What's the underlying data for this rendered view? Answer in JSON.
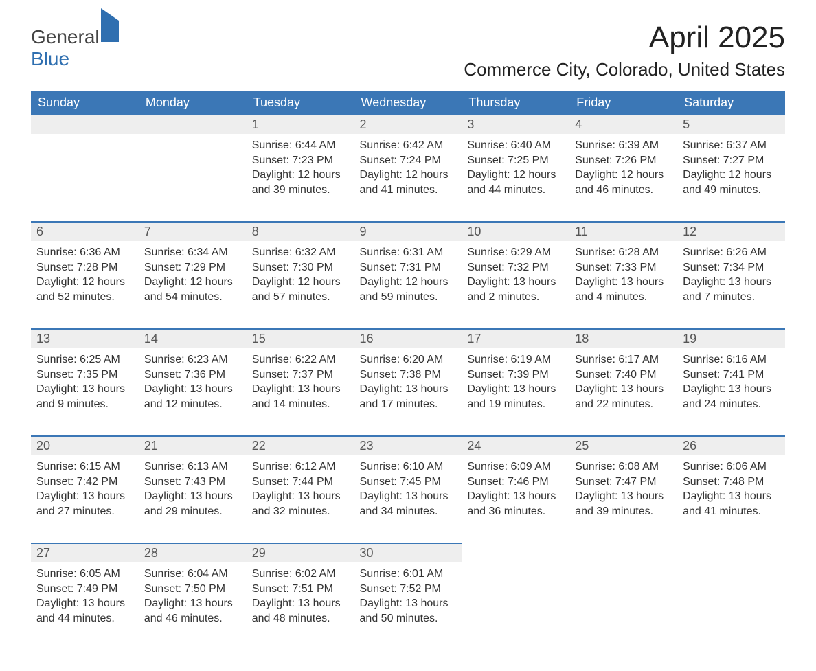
{
  "logo": {
    "word1": "General",
    "word2": "Blue"
  },
  "title": "April 2025",
  "location": "Commerce City, Colorado, United States",
  "colors": {
    "header_bg": "#3b77b6",
    "header_text": "#ffffff",
    "daynum_bg": "#eeeeee",
    "rule": "#3b77b6",
    "body_text": "#333333",
    "accent": "#2f6fb0"
  },
  "day_headers": [
    "Sunday",
    "Monday",
    "Tuesday",
    "Wednesday",
    "Thursday",
    "Friday",
    "Saturday"
  ],
  "weeks": [
    {
      "nums": [
        "",
        "",
        "1",
        "2",
        "3",
        "4",
        "5"
      ],
      "cells": [
        null,
        null,
        {
          "sunrise": "Sunrise: 6:44 AM",
          "sunset": "Sunset: 7:23 PM",
          "day1": "Daylight: 12 hours",
          "day2": "and 39 minutes."
        },
        {
          "sunrise": "Sunrise: 6:42 AM",
          "sunset": "Sunset: 7:24 PM",
          "day1": "Daylight: 12 hours",
          "day2": "and 41 minutes."
        },
        {
          "sunrise": "Sunrise: 6:40 AM",
          "sunset": "Sunset: 7:25 PM",
          "day1": "Daylight: 12 hours",
          "day2": "and 44 minutes."
        },
        {
          "sunrise": "Sunrise: 6:39 AM",
          "sunset": "Sunset: 7:26 PM",
          "day1": "Daylight: 12 hours",
          "day2": "and 46 minutes."
        },
        {
          "sunrise": "Sunrise: 6:37 AM",
          "sunset": "Sunset: 7:27 PM",
          "day1": "Daylight: 12 hours",
          "day2": "and 49 minutes."
        }
      ]
    },
    {
      "nums": [
        "6",
        "7",
        "8",
        "9",
        "10",
        "11",
        "12"
      ],
      "cells": [
        {
          "sunrise": "Sunrise: 6:36 AM",
          "sunset": "Sunset: 7:28 PM",
          "day1": "Daylight: 12 hours",
          "day2": "and 52 minutes."
        },
        {
          "sunrise": "Sunrise: 6:34 AM",
          "sunset": "Sunset: 7:29 PM",
          "day1": "Daylight: 12 hours",
          "day2": "and 54 minutes."
        },
        {
          "sunrise": "Sunrise: 6:32 AM",
          "sunset": "Sunset: 7:30 PM",
          "day1": "Daylight: 12 hours",
          "day2": "and 57 minutes."
        },
        {
          "sunrise": "Sunrise: 6:31 AM",
          "sunset": "Sunset: 7:31 PM",
          "day1": "Daylight: 12 hours",
          "day2": "and 59 minutes."
        },
        {
          "sunrise": "Sunrise: 6:29 AM",
          "sunset": "Sunset: 7:32 PM",
          "day1": "Daylight: 13 hours",
          "day2": "and 2 minutes."
        },
        {
          "sunrise": "Sunrise: 6:28 AM",
          "sunset": "Sunset: 7:33 PM",
          "day1": "Daylight: 13 hours",
          "day2": "and 4 minutes."
        },
        {
          "sunrise": "Sunrise: 6:26 AM",
          "sunset": "Sunset: 7:34 PM",
          "day1": "Daylight: 13 hours",
          "day2": "and 7 minutes."
        }
      ]
    },
    {
      "nums": [
        "13",
        "14",
        "15",
        "16",
        "17",
        "18",
        "19"
      ],
      "cells": [
        {
          "sunrise": "Sunrise: 6:25 AM",
          "sunset": "Sunset: 7:35 PM",
          "day1": "Daylight: 13 hours",
          "day2": "and 9 minutes."
        },
        {
          "sunrise": "Sunrise: 6:23 AM",
          "sunset": "Sunset: 7:36 PM",
          "day1": "Daylight: 13 hours",
          "day2": "and 12 minutes."
        },
        {
          "sunrise": "Sunrise: 6:22 AM",
          "sunset": "Sunset: 7:37 PM",
          "day1": "Daylight: 13 hours",
          "day2": "and 14 minutes."
        },
        {
          "sunrise": "Sunrise: 6:20 AM",
          "sunset": "Sunset: 7:38 PM",
          "day1": "Daylight: 13 hours",
          "day2": "and 17 minutes."
        },
        {
          "sunrise": "Sunrise: 6:19 AM",
          "sunset": "Sunset: 7:39 PM",
          "day1": "Daylight: 13 hours",
          "day2": "and 19 minutes."
        },
        {
          "sunrise": "Sunrise: 6:17 AM",
          "sunset": "Sunset: 7:40 PM",
          "day1": "Daylight: 13 hours",
          "day2": "and 22 minutes."
        },
        {
          "sunrise": "Sunrise: 6:16 AM",
          "sunset": "Sunset: 7:41 PM",
          "day1": "Daylight: 13 hours",
          "day2": "and 24 minutes."
        }
      ]
    },
    {
      "nums": [
        "20",
        "21",
        "22",
        "23",
        "24",
        "25",
        "26"
      ],
      "cells": [
        {
          "sunrise": "Sunrise: 6:15 AM",
          "sunset": "Sunset: 7:42 PM",
          "day1": "Daylight: 13 hours",
          "day2": "and 27 minutes."
        },
        {
          "sunrise": "Sunrise: 6:13 AM",
          "sunset": "Sunset: 7:43 PM",
          "day1": "Daylight: 13 hours",
          "day2": "and 29 minutes."
        },
        {
          "sunrise": "Sunrise: 6:12 AM",
          "sunset": "Sunset: 7:44 PM",
          "day1": "Daylight: 13 hours",
          "day2": "and 32 minutes."
        },
        {
          "sunrise": "Sunrise: 6:10 AM",
          "sunset": "Sunset: 7:45 PM",
          "day1": "Daylight: 13 hours",
          "day2": "and 34 minutes."
        },
        {
          "sunrise": "Sunrise: 6:09 AM",
          "sunset": "Sunset: 7:46 PM",
          "day1": "Daylight: 13 hours",
          "day2": "and 36 minutes."
        },
        {
          "sunrise": "Sunrise: 6:08 AM",
          "sunset": "Sunset: 7:47 PM",
          "day1": "Daylight: 13 hours",
          "day2": "and 39 minutes."
        },
        {
          "sunrise": "Sunrise: 6:06 AM",
          "sunset": "Sunset: 7:48 PM",
          "day1": "Daylight: 13 hours",
          "day2": "and 41 minutes."
        }
      ]
    },
    {
      "nums": [
        "27",
        "28",
        "29",
        "30",
        "",
        "",
        ""
      ],
      "cells": [
        {
          "sunrise": "Sunrise: 6:05 AM",
          "sunset": "Sunset: 7:49 PM",
          "day1": "Daylight: 13 hours",
          "day2": "and 44 minutes."
        },
        {
          "sunrise": "Sunrise: 6:04 AM",
          "sunset": "Sunset: 7:50 PM",
          "day1": "Daylight: 13 hours",
          "day2": "and 46 minutes."
        },
        {
          "sunrise": "Sunrise: 6:02 AM",
          "sunset": "Sunset: 7:51 PM",
          "day1": "Daylight: 13 hours",
          "day2": "and 48 minutes."
        },
        {
          "sunrise": "Sunrise: 6:01 AM",
          "sunset": "Sunset: 7:52 PM",
          "day1": "Daylight: 13 hours",
          "day2": "and 50 minutes."
        },
        null,
        null,
        null
      ]
    }
  ]
}
